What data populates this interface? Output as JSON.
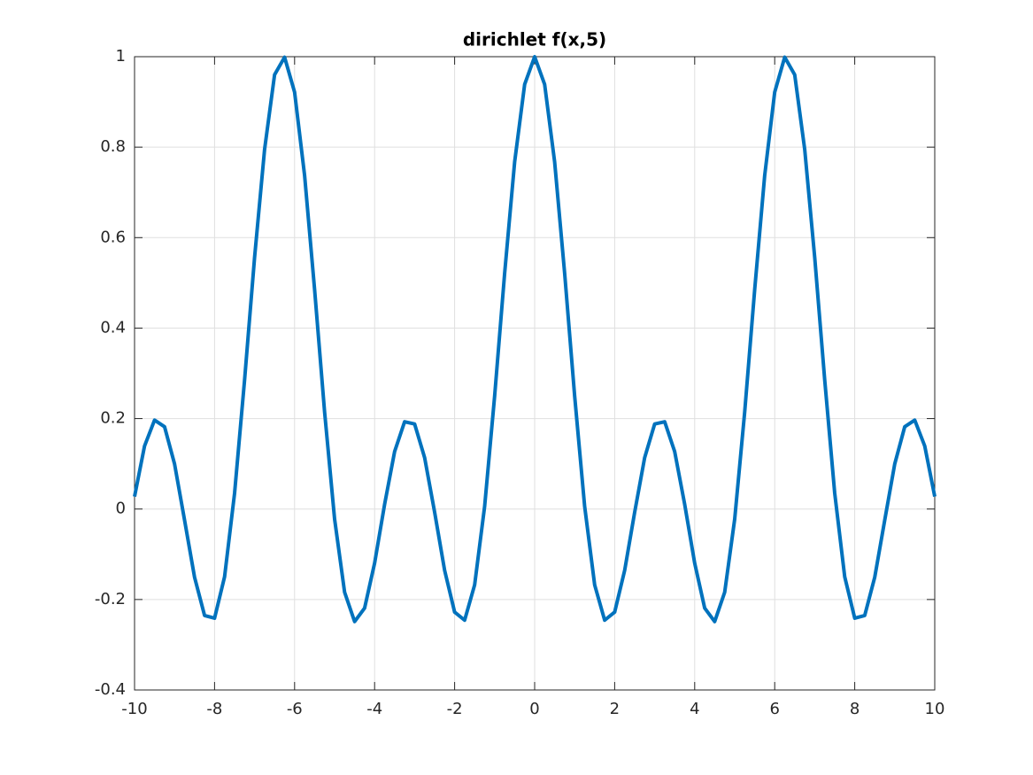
{
  "chart_data": {
    "type": "line",
    "title": "dirichlet f(x,5)",
    "x": [
      -10,
      -9.75,
      -9.5,
      -9.25,
      -9,
      -8.75,
      -8.5,
      -8.25,
      -8,
      -7.75,
      -7.5,
      -7.25,
      -7,
      -6.75,
      -6.5,
      -6.25,
      -6,
      -5.75,
      -5.5,
      -5.25,
      -5,
      -4.75,
      -4.5,
      -4.25,
      -4,
      -3.75,
      -3.5,
      -3.25,
      -3,
      -2.75,
      -2.5,
      -2.25,
      -2,
      -1.75,
      -1.5,
      -1.25,
      -1,
      -0.75,
      -0.5,
      -0.25,
      0,
      0.25,
      0.5,
      0.75,
      1,
      1.25,
      1.5,
      1.75,
      2,
      2.25,
      2.5,
      2.75,
      3,
      3.25,
      3.5,
      3.75,
      4,
      4.25,
      4.5,
      4.75,
      5,
      5.25,
      5.5,
      5.75,
      6,
      6.25,
      6.5,
      6.75,
      7,
      7.25,
      7.5,
      7.75,
      8,
      8.25,
      8.5,
      8.75,
      9,
      9.25,
      9.5,
      9.75,
      10
    ],
    "series": [
      {
        "name": "f(x,5)",
        "color": "#0072bd",
        "values": [
          0.0276,
          0.1393,
          0.1966,
          0.1819,
          0.0997,
          -0.0246,
          -0.1509,
          -0.2353,
          -0.2413,
          -0.1499,
          0.0348,
          0.2852,
          0.5562,
          0.7949,
          0.9602,
          0.9989,
          0.9216,
          0.7377,
          0.4854,
          0.2146,
          -0.0222,
          -0.1839,
          -0.2488,
          -0.2191,
          -0.1197,
          0.0104,
          0.127,
          0.193,
          0.1881,
          0.1137,
          -0.007,
          -0.1356,
          -0.2279,
          -0.2458,
          -0.1677,
          0.0057,
          0.2497,
          0.521,
          0.7672,
          0.9386,
          1,
          0.9386,
          0.7672,
          0.521,
          0.2497,
          0.0057,
          -0.1677,
          -0.2458,
          -0.2279,
          -0.1356,
          -0.007,
          0.1137,
          0.1881,
          0.193,
          0.127,
          0.0104,
          -0.1197,
          -0.2191,
          -0.2488,
          -0.1839,
          -0.0222,
          0.2146,
          0.4854,
          0.7377,
          0.9216,
          0.9989,
          0.9602,
          0.7949,
          0.5562,
          0.2852,
          0.0348,
          -0.1499,
          -0.2413,
          -0.2353,
          -0.1509,
          -0.0246,
          0.0997,
          0.1819,
          0.1966,
          0.1393,
          0.0276
        ]
      }
    ],
    "xlim": [
      -10,
      10
    ],
    "xticks": [
      -10,
      -8,
      -6,
      -4,
      -2,
      0,
      2,
      4,
      6,
      8,
      10
    ],
    "ylim": [
      -0.4,
      1
    ],
    "yticks": [
      -0.4,
      -0.2,
      0,
      0.2,
      0.4,
      0.6,
      0.8,
      1
    ],
    "grid": true
  }
}
